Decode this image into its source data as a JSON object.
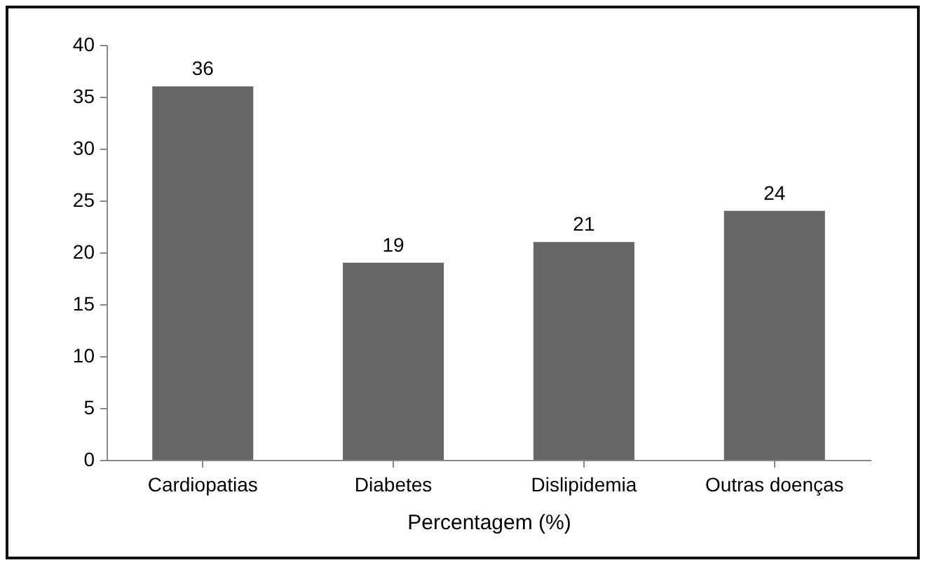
{
  "chart_data": {
    "type": "bar",
    "xlabel": "Percentagem (%)",
    "categories": [
      "Cardiopatias",
      "Diabetes",
      "Dislipidemia",
      "Outras doenças"
    ],
    "values": [
      36,
      19,
      21,
      24
    ],
    "color": "#666666",
    "ylim": [
      0,
      40
    ],
    "yticks": [
      0,
      5,
      10,
      15,
      20,
      25,
      30,
      35,
      40
    ],
    "grid": false,
    "data_labels": true
  }
}
